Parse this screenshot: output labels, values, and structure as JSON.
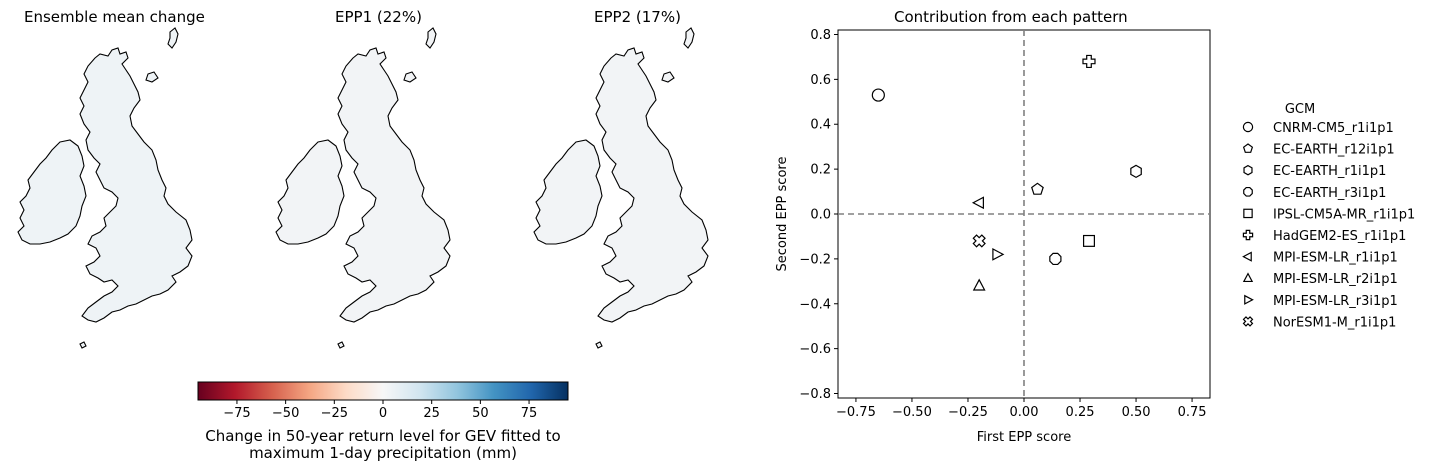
{
  "maps": {
    "titles": [
      "Ensemble mean change",
      "EPP1 (22%)",
      "EPP2 (17%)"
    ]
  },
  "colorbar": {
    "ticks": [
      "−75",
      "−50",
      "−25",
      "0",
      "25",
      "50",
      "75"
    ],
    "tick_values": [
      -75,
      -50,
      -25,
      0,
      25,
      50,
      75
    ],
    "range": [
      -95,
      95
    ],
    "colormap": "RdBu",
    "colors": [
      "#67001f",
      "#b2182b",
      "#d6604d",
      "#f4a582",
      "#fddbc7",
      "#f7f7f7",
      "#d1e5f0",
      "#92c5de",
      "#4393c3",
      "#2166ac",
      "#053061"
    ],
    "label_line1": "Change in 50-year return level for GEV fitted to",
    "label_line2": "maximum 1-day precipitation (mm)"
  },
  "chart_data": {
    "type": "scatter",
    "title": "Contribution from each pattern",
    "xlabel": "First EPP score",
    "ylabel": "Second EPP score",
    "xlim": [
      -0.83,
      0.83
    ],
    "ylim": [
      -0.82,
      0.82
    ],
    "xticks": [
      -0.75,
      -0.5,
      -0.25,
      0.0,
      0.25,
      0.5,
      0.75
    ],
    "xtick_labels": [
      "−0.75",
      "−0.50",
      "−0.25",
      "0.00",
      "0.25",
      "0.50",
      "0.75"
    ],
    "yticks": [
      0.8,
      0.6,
      0.4,
      0.2,
      0.0,
      -0.2,
      -0.4,
      -0.6,
      -0.8
    ],
    "ytick_labels": [
      "0.8",
      "0.6",
      "0.4",
      "0.2",
      "0.0",
      "−0.2",
      "−0.4",
      "−0.6",
      "−0.8"
    ],
    "grid": false,
    "reference_lines": {
      "x": 0,
      "y": 0,
      "style": "dashed",
      "color": "#808080"
    },
    "legend": {
      "title": "GCM",
      "position": "outside-right"
    },
    "series": [
      {
        "name": "CNRM-CM5_r1i1p1",
        "marker": "circle",
        "x": -0.65,
        "y": 0.53
      },
      {
        "name": "EC-EARTH_r12i1p1",
        "marker": "pentagon",
        "x": 0.06,
        "y": 0.11
      },
      {
        "name": "EC-EARTH_r1i1p1",
        "marker": "hexagon",
        "x": 0.5,
        "y": 0.19
      },
      {
        "name": "EC-EARTH_r3i1p1",
        "marker": "octagon",
        "x": 0.14,
        "y": -0.2
      },
      {
        "name": "IPSL-CM5A-MR_r1i1p1",
        "marker": "square",
        "x": 0.29,
        "y": -0.12
      },
      {
        "name": "HadGEM2-ES_r1i1p1",
        "marker": "plus",
        "x": 0.29,
        "y": 0.68
      },
      {
        "name": "MPI-ESM-LR_r1i1p1",
        "marker": "triangle-left",
        "x": -0.2,
        "y": 0.05
      },
      {
        "name": "MPI-ESM-LR_r2i1p1",
        "marker": "triangle-up",
        "x": -0.2,
        "y": -0.32
      },
      {
        "name": "MPI-ESM-LR_r3i1p1",
        "marker": "triangle-right",
        "x": -0.12,
        "y": -0.18
      },
      {
        "name": "NorESM1-M_r1i1p1",
        "marker": "x-filled",
        "x": -0.2,
        "y": -0.12
      }
    ]
  }
}
